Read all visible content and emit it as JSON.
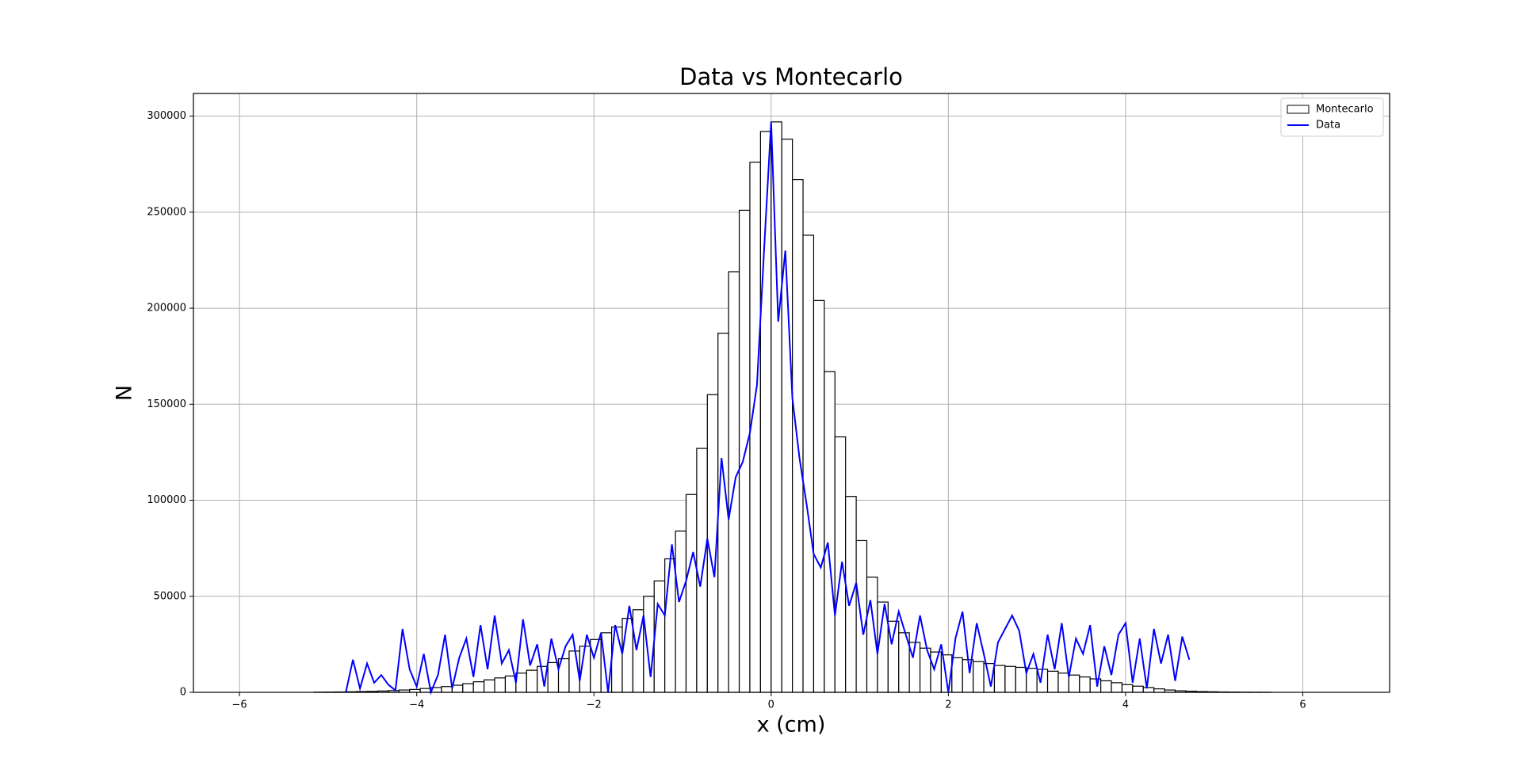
{
  "chart_data": {
    "type": "histogram",
    "title": "Data vs Montecarlo",
    "xlabel": "x (cm)",
    "ylabel": "N",
    "xlim": [
      -6.52,
      6.98
    ],
    "ylim": [
      0,
      311800
    ],
    "xticks": [
      {
        "value": -6,
        "label": "−6"
      },
      {
        "value": -4,
        "label": "−4"
      },
      {
        "value": -2,
        "label": "−2"
      },
      0,
      2,
      4,
      6
    ],
    "yticks": [
      0,
      50000,
      100000,
      150000,
      200000,
      250000,
      300000
    ],
    "grid": true,
    "legend": "upper right",
    "series": [
      {
        "name": "Montecarlo",
        "type": "histogram",
        "color": "#000000",
        "fill": "#ffffff",
        "bins": [
          -5.16,
          -5.04,
          -4.92,
          -4.8,
          -4.68,
          -4.56,
          -4.44,
          -4.32,
          -4.2,
          -4.08,
          -3.96,
          -3.84,
          -3.72,
          -3.6,
          -3.48,
          -3.36,
          -3.24,
          -3.12,
          -3,
          -2.88,
          -2.76,
          -2.64,
          -2.52,
          -2.4,
          -2.28,
          -2.16,
          -2.04,
          -1.92,
          -1.8,
          -1.68,
          -1.56,
          -1.44,
          -1.32,
          -1.2,
          -1.08,
          -0.96,
          -0.84,
          -0.72,
          -0.6,
          -0.48,
          -0.36,
          -0.24,
          -0.12,
          0,
          0.12,
          0.24,
          0.36,
          0.48,
          0.6,
          0.72,
          0.84,
          0.96,
          1.08,
          1.2,
          1.32,
          1.44,
          1.56,
          1.68,
          1.8,
          1.92,
          2.04,
          2.16,
          2.28,
          2.4,
          2.52,
          2.64,
          2.76,
          2.88,
          3,
          3.12,
          3.24,
          3.36,
          3.48,
          3.6,
          3.72,
          3.84,
          3.96,
          4.08,
          4.2,
          4.32,
          4.44,
          4.56,
          4.68,
          4.8,
          4.92,
          5.04,
          5.16,
          5.28,
          5.4,
          5.52,
          5.64
        ],
        "values": [
          100,
          150,
          200,
          300,
          400,
          500,
          700,
          900,
          1200,
          1500,
          2000,
          2500,
          3000,
          3700,
          4500,
          5500,
          6500,
          7500,
          8500,
          10000,
          11500,
          13500,
          15500,
          17500,
          21500,
          24000,
          27500,
          31000,
          34000,
          38500,
          43000,
          50000,
          58000,
          69500,
          84000,
          103000,
          127000,
          155000,
          187000,
          219000,
          251000,
          276000,
          292000,
          297000,
          288000,
          267000,
          238000,
          204000,
          167000,
          133000,
          102000,
          79000,
          60000,
          47000,
          37000,
          31000,
          26000,
          23000,
          21000,
          19500,
          18000,
          17000,
          16000,
          15000,
          14000,
          13500,
          13000,
          12500,
          12000,
          11000,
          10000,
          9000,
          8000,
          7000,
          6000,
          5000,
          4000,
          3200,
          2500,
          1800,
          1200,
          800,
          600,
          400,
          300,
          200,
          150,
          100,
          80,
          50
        ]
      },
      {
        "name": "Data",
        "type": "line",
        "color": "#0000ff",
        "x": [
          -4.8,
          -4.72,
          -4.64,
          -4.56,
          -4.48,
          -4.4,
          -4.32,
          -4.24,
          -4.16,
          -4.08,
          -4,
          -3.92,
          -3.84,
          -3.76,
          -3.68,
          -3.6,
          -3.52,
          -3.44,
          -3.36,
          -3.28,
          -3.2,
          -3.12,
          -3.04,
          -2.96,
          -2.88,
          -2.8,
          -2.72,
          -2.64,
          -2.56,
          -2.48,
          -2.4,
          -2.32,
          -2.24,
          -2.16,
          -2.08,
          -2,
          -1.92,
          -1.84,
          -1.76,
          -1.68,
          -1.6,
          -1.52,
          -1.44,
          -1.36,
          -1.28,
          -1.2,
          -1.12,
          -1.04,
          -0.96,
          -0.88,
          -0.8,
          -0.72,
          -0.64,
          -0.56,
          -0.48,
          -0.4,
          -0.32,
          -0.24,
          -0.16,
          -0.08,
          0,
          0.08,
          0.16,
          0.24,
          0.32,
          0.4,
          0.48,
          0.56,
          0.64,
          0.72,
          0.8,
          0.88,
          0.96,
          1.04,
          1.12,
          1.2,
          1.28,
          1.36,
          1.44,
          1.52,
          1.6,
          1.68,
          1.76,
          1.84,
          1.92,
          2,
          2.08,
          2.16,
          2.24,
          2.32,
          2.4,
          2.48,
          2.56,
          2.64,
          2.72,
          2.8,
          2.88,
          2.96,
          3.04,
          3.12,
          3.2,
          3.28,
          3.36,
          3.44,
          3.52,
          3.6,
          3.68,
          3.76,
          3.84,
          3.92,
          4,
          4.08,
          4.16,
          4.24,
          4.32,
          4.4,
          4.48,
          4.56,
          4.64,
          4.72
        ],
        "values": [
          0,
          17000,
          2000,
          15000,
          5000,
          9000,
          4000,
          1000,
          33000,
          12000,
          3000,
          20000,
          0,
          9000,
          30000,
          2000,
          18000,
          28000,
          8000,
          35000,
          12000,
          40000,
          15000,
          22000,
          5000,
          38000,
          14000,
          25000,
          3000,
          28000,
          12000,
          24000,
          30000,
          6000,
          30000,
          18000,
          31000,
          0,
          35000,
          20000,
          45000,
          22000,
          40000,
          8000,
          46000,
          40000,
          77000,
          47000,
          58000,
          73000,
          55000,
          80000,
          60000,
          122000,
          90000,
          112000,
          120000,
          135000,
          160000,
          230000,
          297000,
          193000,
          230000,
          153000,
          122000,
          98000,
          72000,
          65000,
          78000,
          40000,
          68000,
          45000,
          57000,
          30000,
          48000,
          20000,
          46000,
          25000,
          42000,
          30000,
          18000,
          40000,
          22000,
          12000,
          25000,
          0,
          28000,
          42000,
          10000,
          36000,
          20000,
          3000,
          26000,
          33000,
          40000,
          32000,
          10000,
          20000,
          5000,
          30000,
          12000,
          36000,
          8000,
          28000,
          20000,
          35000,
          3000,
          24000,
          9000,
          30000,
          36000,
          5000,
          28000,
          2000,
          33000,
          15000,
          30000,
          6000,
          29000,
          17000
        ]
      }
    ]
  }
}
